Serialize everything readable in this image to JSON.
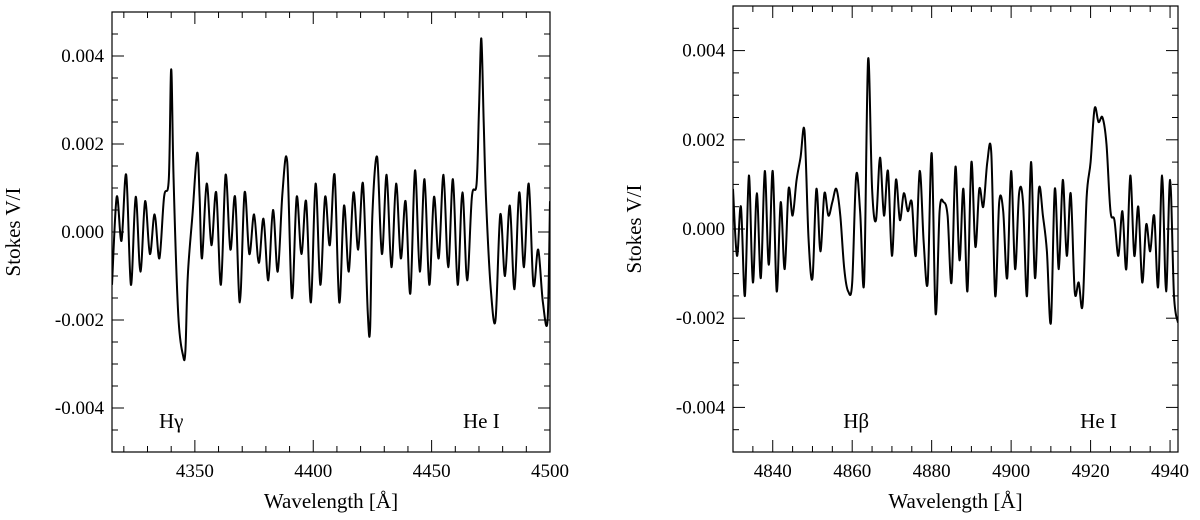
{
  "chart_data": [
    {
      "type": "line",
      "title": "",
      "xlabel": "Wavelength [Å]",
      "ylabel": "Stokes V/I",
      "xlim": [
        4315,
        4500
      ],
      "ylim": [
        -0.005,
        0.005
      ],
      "xticks": [
        4350,
        4400,
        4450,
        4500
      ],
      "yticks": [
        0.004,
        0.002,
        0.0,
        -0.002,
        -0.004
      ],
      "ytick_labels": [
        "0.004",
        "0.002",
        "0.000",
        "-0.002",
        "-0.004"
      ],
      "grid": false,
      "annotations": [
        {
          "text": "Hγ",
          "x": 4340,
          "y": -0.0043
        },
        {
          "text": "He I",
          "x": 4471,
          "y": -0.0043
        }
      ],
      "series": [
        {
          "x": [
            4315,
            4317,
            4319,
            4321,
            4323,
            4325,
            4327,
            4329,
            4331,
            4333,
            4335,
            4337,
            4339,
            4340,
            4341,
            4343,
            4345,
            4346,
            4347,
            4349,
            4351,
            4352,
            4353,
            4355,
            4357,
            4359,
            4361,
            4363,
            4365,
            4367,
            4369,
            4371,
            4373,
            4375,
            4377,
            4379,
            4381,
            4383,
            4385,
            4387,
            4389,
            4391,
            4393,
            4395,
            4397,
            4399,
            4401,
            4403,
            4405,
            4407,
            4409,
            4411,
            4413,
            4415,
            4417,
            4419,
            4421,
            4423,
            4424,
            4425,
            4427,
            4429,
            4431,
            4433,
            4435,
            4437,
            4439,
            4441,
            4443,
            4445,
            4447,
            4449,
            4451,
            4453,
            4455,
            4457,
            4459,
            4461,
            4463,
            4465,
            4467,
            4469,
            4470,
            4471,
            4472,
            4473,
            4475,
            4477,
            4479,
            4481,
            4483,
            4485,
            4487,
            4489,
            4491,
            4493,
            4495,
            4497,
            4499,
            4500
          ],
          "y": [
            -0.0012,
            0.0008,
            -0.0002,
            0.0013,
            -0.0012,
            0.0008,
            -0.0009,
            0.0007,
            -0.0005,
            0.0004,
            -0.0006,
            0.0008,
            0.0012,
            0.0037,
            0.0012,
            -0.0019,
            -0.0028,
            -0.0027,
            -0.001,
            0.0004,
            0.0018,
            0.0008,
            -0.0006,
            0.0011,
            -0.0003,
            0.0009,
            -0.0012,
            0.0013,
            -0.0004,
            0.0008,
            -0.0016,
            0.0009,
            -0.0005,
            0.0004,
            -0.0007,
            0.0003,
            -0.0011,
            0.0005,
            -0.0009,
            0.0009,
            0.0016,
            -0.0015,
            0.0008,
            -0.0005,
            0.0007,
            -0.0016,
            0.0011,
            -0.0012,
            0.0008,
            -0.0003,
            0.0013,
            -0.0016,
            0.0006,
            -0.0009,
            0.0009,
            -0.0004,
            0.0011,
            -0.0018,
            -0.0022,
            0.0004,
            0.0017,
            -0.0005,
            0.0013,
            -0.0008,
            0.0011,
            -0.0006,
            0.0007,
            -0.0014,
            0.0014,
            -0.0009,
            0.0012,
            -0.0012,
            0.0008,
            -0.0006,
            0.0013,
            -0.0008,
            0.0012,
            -0.0012,
            0.0009,
            -0.0011,
            0.0008,
            0.0011,
            0.0028,
            0.0044,
            0.0025,
            0.0007,
            -0.0013,
            -0.002,
            0.0004,
            -0.001,
            0.0006,
            -0.0013,
            0.0009,
            -0.0008,
            0.0011,
            -0.0012,
            -0.0004,
            -0.0016,
            -0.002,
            0.0007
          ]
        }
      ]
    },
    {
      "type": "line",
      "title": "",
      "xlabel": "Wavelength [Å]",
      "ylabel": "Stokes V/I",
      "xlim": [
        4830,
        4942
      ],
      "ylim": [
        -0.005,
        0.005
      ],
      "xticks": [
        4840,
        4860,
        4880,
        4900,
        4920,
        4940
      ],
      "yticks": [
        0.004,
        0.002,
        0.0,
        -0.002,
        -0.004
      ],
      "ytick_labels": [
        "0.004",
        "0.002",
        "0.000",
        "-0.002",
        "-0.004"
      ],
      "grid": false,
      "annotations": [
        {
          "text": "Hβ",
          "x": 4861,
          "y": -0.0043
        },
        {
          "text": "He I",
          "x": 4922,
          "y": -0.0043
        }
      ],
      "series": [
        {
          "x": [
            4830,
            4831,
            4832,
            4833,
            4834,
            4835,
            4836,
            4837,
            4838,
            4839,
            4840,
            4841,
            4842,
            4843,
            4844,
            4845,
            4846,
            4847,
            4848,
            4849,
            4850,
            4851,
            4852,
            4853,
            4854,
            4855,
            4856,
            4857,
            4858,
            4859,
            4860,
            4861,
            4862,
            4863,
            4864,
            4865,
            4866,
            4867,
            4868,
            4869,
            4870,
            4871,
            4872,
            4873,
            4874,
            4875,
            4876,
            4877,
            4878,
            4879,
            4880,
            4881,
            4882,
            4883,
            4884,
            4885,
            4886,
            4887,
            4888,
            4889,
            4890,
            4891,
            4892,
            4893,
            4894,
            4895,
            4896,
            4897,
            4898,
            4899,
            4900,
            4901,
            4902,
            4903,
            4904,
            4905,
            4906,
            4907,
            4908,
            4909,
            4910,
            4911,
            4912,
            4913,
            4914,
            4915,
            4916,
            4917,
            4918,
            4919,
            4920,
            4921,
            4922,
            4923,
            4924,
            4925,
            4926,
            4927,
            4928,
            4929,
            4930,
            4931,
            4932,
            4933,
            4934,
            4935,
            4936,
            4937,
            4938,
            4939,
            4940,
            4941,
            4942
          ],
          "y": [
            0.0009,
            -0.0006,
            0.0005,
            -0.0015,
            0.0012,
            -0.0012,
            0.0008,
            -0.0011,
            0.0013,
            -0.0008,
            0.0013,
            -0.0014,
            0.0006,
            -0.0009,
            0.0009,
            0.0003,
            0.0011,
            0.0016,
            0.0022,
            -0.0002,
            -0.0011,
            0.0009,
            -0.0005,
            0.0008,
            0.0003,
            0.0006,
            0.0009,
            0.0003,
            -0.0009,
            -0.0014,
            -0.0012,
            0.0012,
            0.0004,
            -0.0012,
            0.0038,
            0.0009,
            0.0002,
            0.0016,
            0.0003,
            0.0013,
            -0.0006,
            0.0011,
            0.0002,
            0.0008,
            0.0004,
            0.0006,
            -0.0006,
            0.0013,
            -0.0003,
            -0.0012,
            0.0017,
            -0.0019,
            0.0004,
            0.0006,
            0.0003,
            -0.0012,
            0.0014,
            -0.0007,
            0.0009,
            -0.0014,
            0.0015,
            -0.0004,
            0.0009,
            0.0005,
            0.0015,
            0.0017,
            -0.0015,
            0.0006,
            0.0004,
            -0.0011,
            0.0013,
            -0.0009,
            0.0008,
            0.0006,
            -0.0015,
            0.0015,
            -0.0011,
            0.0009,
            0.0003,
            -0.0005,
            -0.0021,
            0.0009,
            -0.0009,
            0.0011,
            -0.0006,
            0.0008,
            -0.0014,
            -0.0012,
            -0.0017,
            0.0007,
            0.0015,
            0.0027,
            0.0024,
            0.0025,
            0.0019,
            0.0004,
            0.0002,
            -0.0006,
            0.0004,
            -0.0009,
            0.0012,
            -0.0006,
            0.0005,
            -0.0012,
            0.0001,
            -0.0005,
            0.0003,
            -0.0013,
            0.0012,
            -0.0014,
            0.0011,
            -0.0015,
            -0.0021
          ]
        }
      ]
    }
  ]
}
